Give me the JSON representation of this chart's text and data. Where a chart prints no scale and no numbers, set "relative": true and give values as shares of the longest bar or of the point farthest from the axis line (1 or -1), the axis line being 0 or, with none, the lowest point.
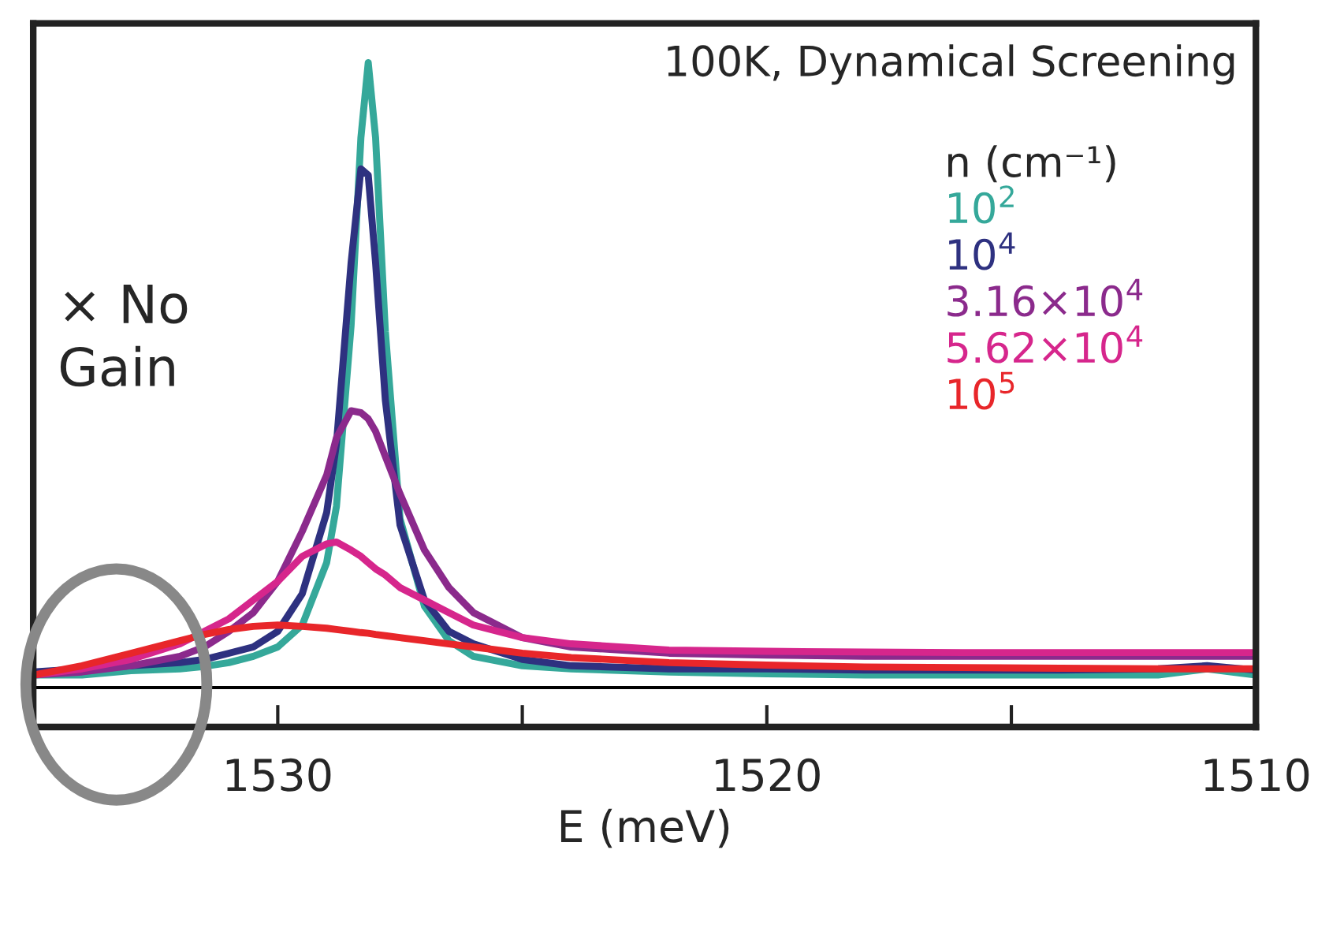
{
  "chart_data": {
    "type": "line",
    "relative": true,
    "xlabel": "E (meV)",
    "legend_title": "n (cm⁻¹)",
    "legend": "top right",
    "grid": false,
    "marker": "none",
    "line_style": "solid",
    "xlim": [
      1535,
      1510
    ],
    "xticks": [
      1530,
      1520,
      1510,
      {
        "value": 1525,
        "label": null
      },
      {
        "value": 1515,
        "label": null
      }
    ],
    "tick_labels": "x",
    "annotations": [
      "100K, Dynamical Screening",
      "× No\nGain"
    ],
    "x": [
      1535,
      1534,
      1533,
      1532,
      1531.5,
      1531,
      1530.5,
      1530,
      1529.5,
      1529,
      1528.8,
      1528.5,
      1528.3,
      1528.15,
      1528,
      1527.8,
      1527.5,
      1527,
      1526.5,
      1526,
      1525,
      1524,
      1522,
      1520,
      1518,
      1516,
      1514,
      1512,
      1511,
      1510
    ],
    "series": [
      {
        "name": "10$^{2}$",
        "color": "#35a89a",
        "values": [
          0.02,
          0.02,
          0.027,
          0.03,
          0.034,
          0.04,
          0.05,
          0.065,
          0.1,
          0.2,
          0.29,
          0.58,
          0.88,
          1.0,
          0.88,
          0.57,
          0.27,
          0.13,
          0.075,
          0.05,
          0.035,
          0.03,
          0.025,
          0.022,
          0.02,
          0.02,
          0.02,
          0.02,
          0.03,
          0.02
        ]
      },
      {
        "name": "10$^{4}$",
        "color": "#2e3180",
        "values": [
          0.025,
          0.03,
          0.035,
          0.04,
          0.045,
          0.055,
          0.065,
          0.09,
          0.15,
          0.28,
          0.39,
          0.68,
          0.83,
          0.82,
          0.68,
          0.46,
          0.26,
          0.14,
          0.09,
          0.07,
          0.045,
          0.035,
          0.03,
          0.03,
          0.028,
          0.028,
          0.028,
          0.03,
          0.035,
          0.028
        ]
      },
      {
        "name": "3.16×10$^{4}$",
        "color": "#8b2a8c",
        "values": [
          0.02,
          0.025,
          0.035,
          0.05,
          0.065,
          0.09,
          0.12,
          0.17,
          0.25,
          0.34,
          0.4,
          0.443,
          0.44,
          0.43,
          0.41,
          0.37,
          0.31,
          0.22,
          0.16,
          0.12,
          0.08,
          0.065,
          0.055,
          0.052,
          0.05,
          0.05,
          0.05,
          0.05,
          0.05,
          0.05
        ]
      },
      {
        "name": "5.62×10$^{4}$",
        "color": "#d6268c",
        "values": [
          0.02,
          0.03,
          0.045,
          0.07,
          0.09,
          0.11,
          0.14,
          0.17,
          0.21,
          0.23,
          0.233,
          0.22,
          0.21,
          0.2,
          0.19,
          0.18,
          0.16,
          0.14,
          0.12,
          0.1,
          0.08,
          0.07,
          0.06,
          0.058,
          0.057,
          0.056,
          0.056,
          0.056,
          0.056,
          0.056
        ]
      },
      {
        "name": "10$^{5}$",
        "color": "#e8262a",
        "values": [
          0.02,
          0.035,
          0.055,
          0.075,
          0.085,
          0.093,
          0.098,
          0.1,
          0.098,
          0.095,
          0.093,
          0.09,
          0.088,
          0.087,
          0.085,
          0.083,
          0.08,
          0.075,
          0.07,
          0.065,
          0.055,
          0.048,
          0.04,
          0.036,
          0.033,
          0.032,
          0.031,
          0.03,
          0.03,
          0.03
        ]
      }
    ]
  }
}
